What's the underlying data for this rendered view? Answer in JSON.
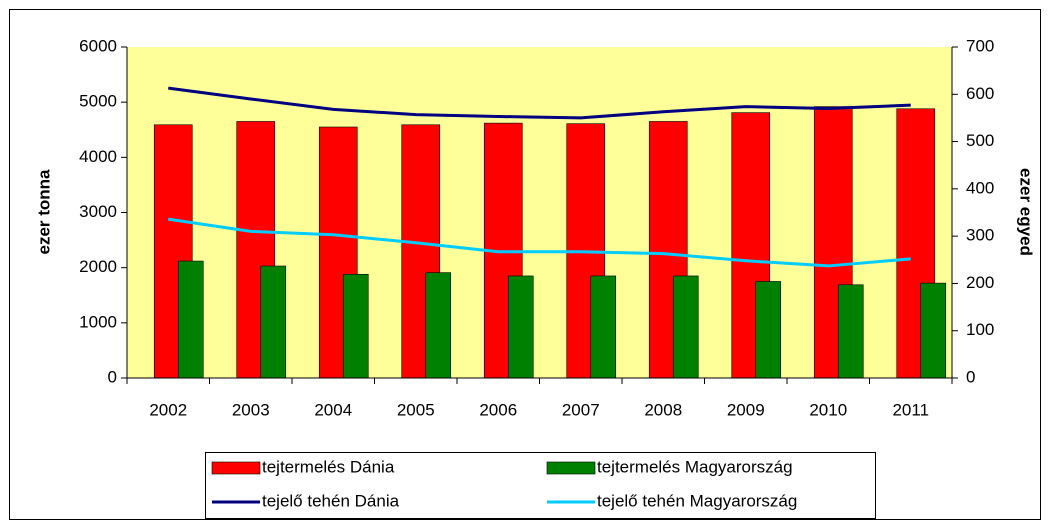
{
  "chart_data": {
    "type": "bar",
    "categories": [
      "2002",
      "2003",
      "2004",
      "2005",
      "2006",
      "2007",
      "2008",
      "2009",
      "2010",
      "2011"
    ],
    "y_label": "ezer tonna",
    "y2_label": "ezer egyed",
    "ylim": [
      0,
      6000
    ],
    "yticks": [
      0,
      1000,
      2000,
      3000,
      4000,
      5000,
      6000
    ],
    "y2lim": [
      0,
      700
    ],
    "y2ticks": [
      0,
      100,
      200,
      300,
      400,
      500,
      600,
      700
    ],
    "legend": "bottom",
    "series": [
      {
        "name": "tejtermelés Dánia",
        "color": "#ff0000",
        "values": [
          4590,
          4650,
          4550,
          4590,
          4620,
          4610,
          4650,
          4810,
          4920,
          4880
        ]
      },
      {
        "name": "tejtermelés Magyarország",
        "color": "#008000",
        "values": [
          2120,
          2030,
          1880,
          1910,
          1850,
          1850,
          1850,
          1750,
          1690,
          1720
        ]
      },
      {
        "name": "tejelő tehén Dánia",
        "color": "#000080",
        "axis": "y2",
        "values": [
          613,
          590,
          568,
          557,
          553,
          550,
          563,
          574,
          570,
          577
        ]
      },
      {
        "name": "tejelő tehén Magyarország",
        "color": "#00ccff",
        "axis": "y2",
        "values": [
          336,
          310,
          303,
          286,
          267,
          267,
          263,
          248,
          237,
          252
        ]
      }
    ]
  }
}
